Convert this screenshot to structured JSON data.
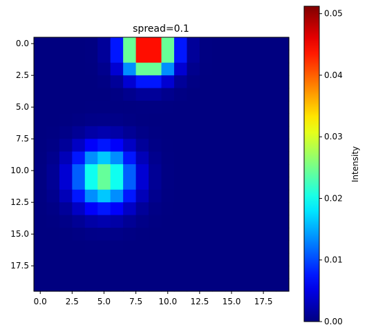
{
  "chart_data": {
    "type": "heatmap",
    "title": "spread=0.1",
    "colormap": "jet",
    "grid": false,
    "shape": [
      20,
      20
    ],
    "xlim": [
      -0.5,
      19.5
    ],
    "ylim": [
      19.5,
      -0.5
    ],
    "x_ticks": [
      "0.0",
      "2.5",
      "5.0",
      "7.5",
      "10.0",
      "12.5",
      "15.0",
      "17.5"
    ],
    "y_ticks": [
      "0.0",
      "2.5",
      "5.0",
      "7.5",
      "10.0",
      "12.5",
      "15.0",
      "17.5"
    ],
    "x_tick_values": [
      0,
      2.5,
      5,
      7.5,
      10,
      12.5,
      15,
      17.5
    ],
    "y_tick_values": [
      0,
      2.5,
      5,
      7.5,
      10,
      12.5,
      15,
      17.5
    ],
    "colorbar": {
      "label": "Intensity",
      "range": [
        0,
        0.0512
      ],
      "ticks": [
        "0.00",
        "0.01",
        "0.02",
        "0.03",
        "0.04",
        "0.05"
      ],
      "tick_values": [
        0,
        0.01,
        0.02,
        0.03,
        0.04,
        0.05
      ]
    },
    "sources": [
      {
        "row": 0.5,
        "col": 8.5,
        "peak": 0.0512,
        "sigma": 1.3
      },
      {
        "row": 10.5,
        "col": 5.0,
        "peak": 0.0255,
        "sigma": 1.6
      }
    ]
  }
}
